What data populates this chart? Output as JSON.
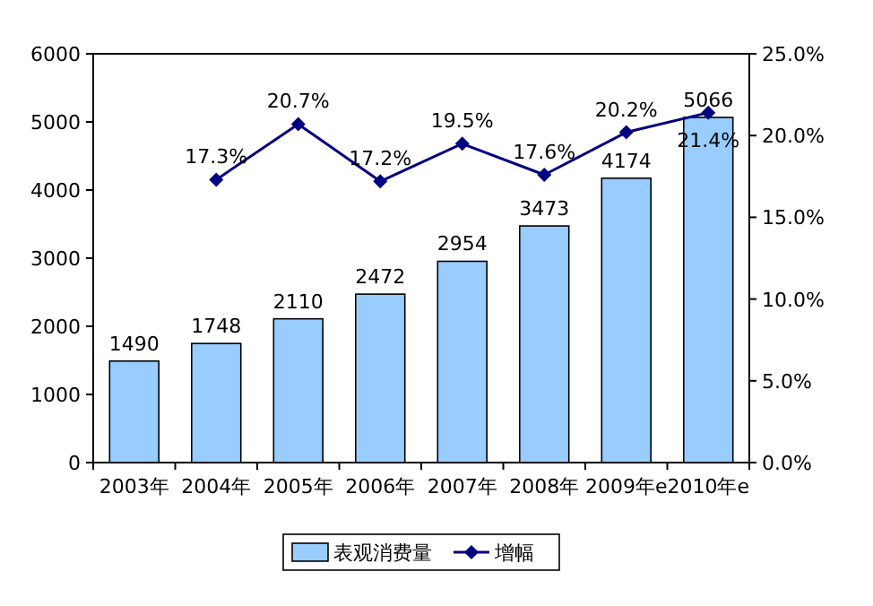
{
  "chart_data": {
    "type": "bar",
    "categories": [
      "2003年",
      "2004年",
      "2005年",
      "2006年",
      "2007年",
      "2008年",
      "2009年e",
      "2010年e"
    ],
    "series": [
      {
        "name": "表观消费量",
        "color": "#99ccff",
        "values": [
          1490,
          1748,
          2110,
          2472,
          2954,
          3473,
          4174,
          5066
        ],
        "value_labels": [
          "1490",
          "1748",
          "2110",
          "2472",
          "2954",
          "3473",
          "4174",
          "5066"
        ]
      },
      {
        "name": "增幅",
        "type": "line",
        "axis": "y2",
        "color": "#000080",
        "values": [
          null,
          17.3,
          20.7,
          17.2,
          19.5,
          17.6,
          20.2,
          21.4
        ],
        "value_labels": [
          null,
          "17.3%",
          "20.7%",
          "17.2%",
          "19.5%",
          "17.6%",
          "20.2%",
          "21.4%"
        ]
      }
    ],
    "ylim": [
      0,
      6000
    ],
    "yticks": [
      0,
      1000,
      2000,
      3000,
      4000,
      5000,
      6000
    ],
    "y2lim": [
      0,
      25
    ],
    "y2ticks": [
      {
        "value": 0,
        "label": "0.0%"
      },
      {
        "value": 5,
        "label": "5.0%"
      },
      {
        "value": 10,
        "label": "10.0%"
      },
      {
        "value": 15,
        "label": "15.0%"
      },
      {
        "value": 20,
        "label": "20.0%"
      },
      {
        "value": 25,
        "label": "25.0%"
      }
    ],
    "marker": "diamond",
    "line_style": "solid",
    "legend": "bottom",
    "grid": false
  }
}
